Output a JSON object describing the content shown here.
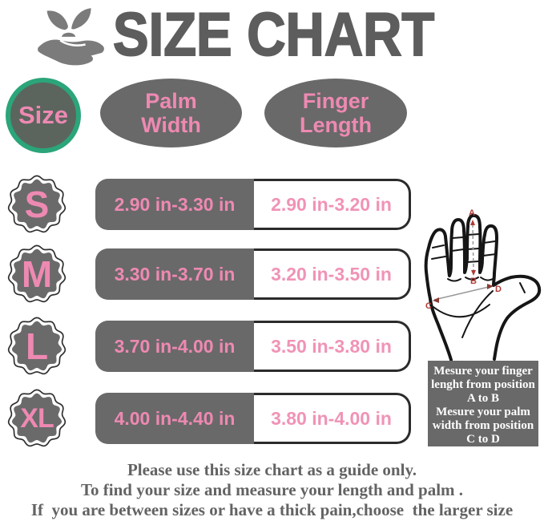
{
  "header": {
    "title": "SIZE CHART"
  },
  "icons": {
    "logo": "hand-holding-plant"
  },
  "colors": {
    "gray": "#696969",
    "pink": "#ee89b2",
    "green_ring": "#2ba57a",
    "circle_fill": "#5b655e",
    "cell_border": "#2b2b2b",
    "label_red": "#b03a36"
  },
  "table": {
    "size_header": "Size",
    "columns": [
      "Palm Width",
      "Finger Length"
    ],
    "rows": [
      {
        "size": "S",
        "palm_width": "2.90 in-3.30 in",
        "finger_length": "2.90 in-3.20 in"
      },
      {
        "size": "M",
        "palm_width": "3.30 in-3.70 in",
        "finger_length": "3.20 in-3.50 in"
      },
      {
        "size": "L",
        "palm_width": "3.70 in-4.00 in",
        "finger_length": "3.50 in-3.80 in"
      },
      {
        "size": "XL",
        "palm_width": "4.00 in-4.40 in",
        "finger_length": "3.80 in-4.00 in"
      }
    ]
  },
  "hand_diagram": {
    "labels": {
      "a": "A",
      "b": "B",
      "c": "C",
      "d": "D"
    }
  },
  "note": {
    "lines": [
      "Mesure your finger",
      "lenght from position",
      "A to B",
      "Mesure your palm",
      "width from position",
      "C to D"
    ]
  },
  "footer": {
    "lines": [
      "Please use this size chart as a guide only.",
      "To find your size and measure your length and palm .",
      "If  you are between sizes or have a thick pain,choose  the larger size"
    ]
  },
  "chart_data": {
    "type": "table",
    "title": "SIZE CHART",
    "columns": [
      "Size",
      "Palm Width",
      "Finger Length"
    ],
    "rows": [
      [
        "S",
        "2.90 in-3.30 in",
        "2.90 in-3.20 in"
      ],
      [
        "M",
        "3.30 in-3.70 in",
        "3.20 in-3.50 in"
      ],
      [
        "L",
        "3.70 in-4.00 in",
        "3.50 in-3.80 in"
      ],
      [
        "XL",
        "4.00 in-4.40 in",
        "3.80 in-4.00 in"
      ]
    ],
    "notes": "Measure finger length from position A to B and palm width from position C to D on the hand diagram."
  }
}
